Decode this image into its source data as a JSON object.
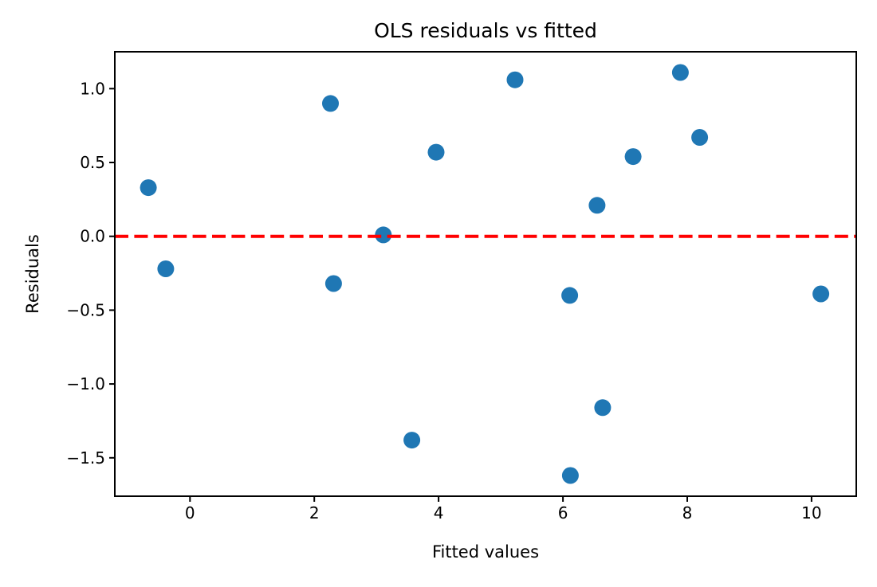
{
  "figure": {
    "background": "#ffffff"
  },
  "chart_data": {
    "type": "scatter",
    "title": "OLS residuals vs fitted",
    "xlabel": "Fitted values",
    "ylabel": "Residuals",
    "xlim": [
      -1.21,
      10.72
    ],
    "ylim": [
      -1.76,
      1.25
    ],
    "x_ticks": [
      0,
      2,
      4,
      6,
      8,
      10
    ],
    "y_ticks": [
      1.0,
      0.5,
      0.0,
      -0.5,
      -1.0,
      -1.5
    ],
    "grid": false,
    "legend": "none",
    "axis_color": "#000000",
    "marker_color": "#1f77b4",
    "zero_line": {
      "y": 0.0,
      "color": "#ff0000",
      "style": "dashed"
    },
    "points": [
      {
        "x": -0.67,
        "y": 0.33
      },
      {
        "x": -0.39,
        "y": -0.22
      },
      {
        "x": 2.26,
        "y": 0.9
      },
      {
        "x": 2.31,
        "y": -0.32
      },
      {
        "x": 3.11,
        "y": 0.01
      },
      {
        "x": 3.57,
        "y": -1.38
      },
      {
        "x": 3.96,
        "y": 0.57
      },
      {
        "x": 5.23,
        "y": 1.06
      },
      {
        "x": 6.11,
        "y": -0.4
      },
      {
        "x": 6.12,
        "y": -1.62
      },
      {
        "x": 6.55,
        "y": 0.21
      },
      {
        "x": 6.64,
        "y": -1.16
      },
      {
        "x": 7.13,
        "y": 0.54
      },
      {
        "x": 7.89,
        "y": 1.11
      },
      {
        "x": 8.2,
        "y": 0.67
      },
      {
        "x": 10.15,
        "y": -0.39
      }
    ]
  }
}
